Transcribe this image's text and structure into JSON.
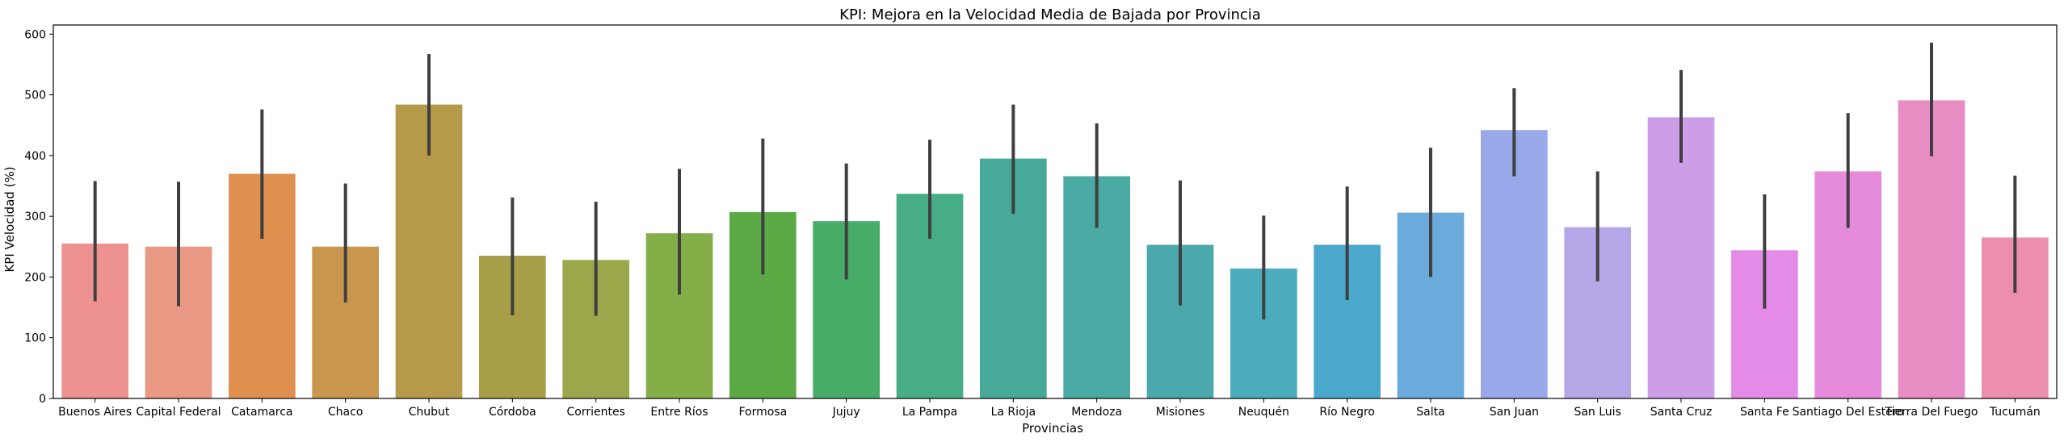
{
  "chart_data": {
    "type": "bar",
    "title": "KPI: Mejora en la Velocidad Media de Bajada por Provincia",
    "xlabel": "Provincias",
    "ylabel": "KPI Velocidad (%)",
    "ylim": [
      0,
      615
    ],
    "yticks": [
      0,
      100,
      200,
      300,
      400,
      500,
      600
    ],
    "grid": false,
    "legend": "none",
    "error_bars": true,
    "categories": [
      "Buenos Aires",
      "Capital Federal",
      "Catamarca",
      "Chaco",
      "Chubut",
      "Córdoba",
      "Corrientes",
      "Entre Ríos",
      "Formosa",
      "Jujuy",
      "La Pampa",
      "La Rioja",
      "Mendoza",
      "Misiones",
      "Neuquén",
      "Río Negro",
      "Salta",
      "San Juan",
      "San Luis",
      "Santa Cruz",
      "Santa Fe",
      "Santiago Del Estero",
      "Tierra Del Fuego",
      "Tucumán"
    ],
    "values": [
      255,
      250,
      370,
      250,
      484,
      235,
      228,
      272,
      307,
      292,
      337,
      395,
      366,
      253,
      214,
      253,
      306,
      442,
      282,
      463,
      244,
      374,
      491,
      265
    ],
    "ci_low": [
      160,
      152,
      263,
      158,
      400,
      137,
      136,
      171,
      204,
      196,
      263,
      304,
      281,
      153,
      130,
      162,
      200,
      366,
      193,
      388,
      148,
      281,
      399,
      174
    ],
    "ci_high": [
      358,
      357,
      476,
      354,
      567,
      331,
      324,
      378,
      428,
      387,
      426,
      484,
      453,
      359,
      301,
      349,
      413,
      511,
      374,
      541,
      336,
      470,
      586,
      367
    ],
    "colors": [
      "#ee9191",
      "#e99883",
      "#e0904e",
      "#c9964d",
      "#b59a4a",
      "#a79e48",
      "#9ca64a",
      "#84ae48",
      "#5caa46",
      "#46ac68",
      "#47ad86",
      "#47aa99",
      "#4aaaa4",
      "#4ba8ad",
      "#4aacbc",
      "#4aa8cc",
      "#6aabdc",
      "#99a8e9",
      "#b5a6e8",
      "#cd9de7",
      "#e48ae7",
      "#e68bdc",
      "#e88cc4",
      "#ec8fae"
    ]
  }
}
